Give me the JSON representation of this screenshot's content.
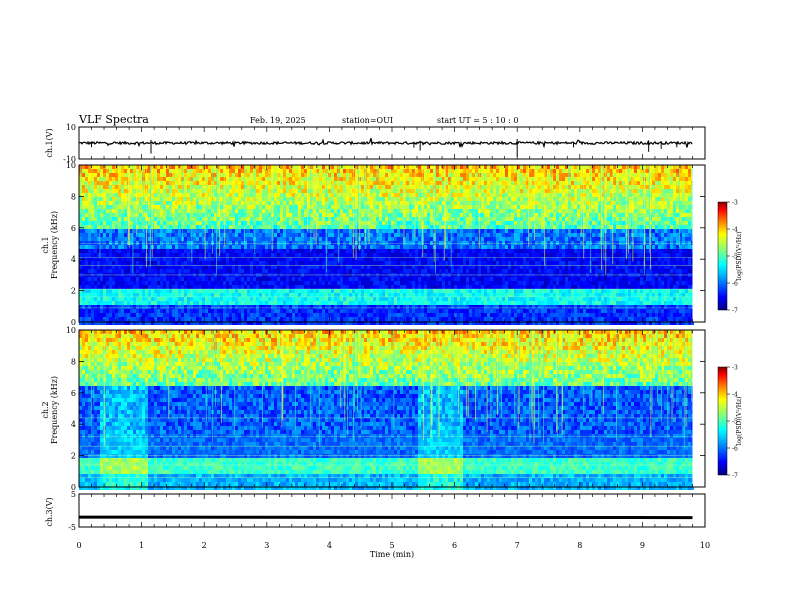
{
  "header": {
    "title": "VLF Spectra",
    "date": "Feb. 19, 2025",
    "station": "station=OUI",
    "start_ut": "start  UT =   5 : 10 : 0"
  },
  "colors": {
    "colormap": [
      "#000080",
      "#0000ff",
      "#00a0ff",
      "#00ffff",
      "#80ff80",
      "#ffff00",
      "#ff8000",
      "#ff0000",
      "#800000"
    ],
    "trace": "#000000"
  },
  "chart_data": [
    {
      "type": "line",
      "name": "ch1-waveform",
      "ylabel": "ch.1(V)",
      "ylim": [
        -10,
        10
      ],
      "yticks": [
        "10",
        "-10"
      ],
      "baseline": 0,
      "x_range": [
        0,
        9.8
      ],
      "grid": false
    },
    {
      "type": "heatmap",
      "name": "ch1-spectrogram",
      "ylabel": "ch.1 Frequency (kHz)",
      "xlim": [
        0,
        10
      ],
      "ylim": [
        0,
        10
      ],
      "yticks": [
        "0",
        "2",
        "4",
        "6",
        "8",
        "10"
      ],
      "data_x_range": [
        0,
        9.8
      ],
      "colorbar": {
        "label": "log(PSD)(V²/Hz)",
        "range": [
          -7,
          -3
        ],
        "ticks": [
          "-3",
          "-4",
          "-5",
          "-6",
          "-7"
        ]
      }
    },
    {
      "type": "heatmap",
      "name": "ch2-spectrogram",
      "ylabel": "ch.2 Frequency (kHz)",
      "xlim": [
        0,
        10
      ],
      "ylim": [
        0,
        10
      ],
      "yticks": [
        "0",
        "2",
        "4",
        "6",
        "8",
        "10"
      ],
      "data_x_range": [
        0,
        9.8
      ],
      "colorbar": {
        "label": "log(PSD)(V²/Hz)",
        "range": [
          -7,
          -3
        ],
        "ticks": [
          "-3",
          "-4",
          "-5",
          "-6",
          "-7"
        ]
      }
    },
    {
      "type": "line",
      "name": "ch3-waveform",
      "ylabel": "ch.3(V)",
      "ylim": [
        -5,
        5
      ],
      "yticks": [
        "5",
        "-5"
      ],
      "baseline": -2,
      "x_range": [
        0,
        9.8
      ],
      "grid": false
    }
  ],
  "xaxis": {
    "label": "Time  (min)",
    "ticks": [
      "0",
      "1",
      "2",
      "3",
      "4",
      "5",
      "6",
      "7",
      "8",
      "9",
      "10"
    ],
    "xlim": [
      0,
      10
    ]
  }
}
